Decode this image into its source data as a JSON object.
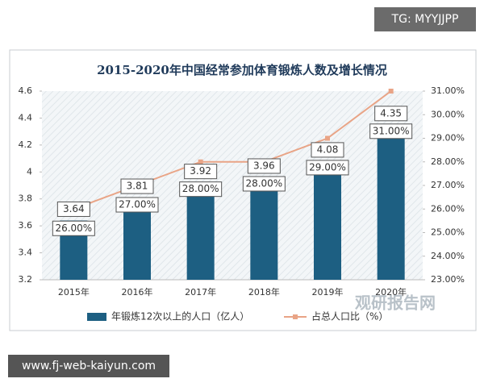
{
  "tag": "TG: MYYJJPP",
  "footer_url": "www.fj-web-kaiyun.com",
  "watermark": "观研报告网",
  "chart_data": {
    "type": "bar-line",
    "title": "2015-2020年中国经常参加体育锻炼人数及增长情况",
    "categories": [
      "2015年",
      "2016年",
      "2017年",
      "2018年",
      "2019年",
      "2020年"
    ],
    "series": [
      {
        "name": "年锻炼12次以上的人口（亿人）",
        "type": "bar",
        "color": "#1d5f82",
        "values": [
          3.64,
          3.81,
          3.92,
          3.96,
          4.08,
          4.35
        ]
      },
      {
        "name": "占总人口比（%）",
        "type": "line",
        "axis": "y2",
        "color": "#e9a486",
        "values": [
          26,
          27,
          28,
          28,
          29,
          31
        ],
        "value_labels": [
          "26.00%",
          "27.00%",
          "28.00%",
          "28.00%",
          "29.00%",
          "31.00%"
        ]
      }
    ],
    "ylim": [
      3.2,
      4.6
    ],
    "yticks": [
      3.2,
      3.4,
      3.6,
      3.8,
      4,
      4.2,
      4.4,
      4.6
    ],
    "y2lim": [
      23,
      31
    ],
    "y2ticks": [
      {
        "value": 23,
        "label": "23.00%"
      },
      {
        "value": 24,
        "label": "24.00%"
      },
      {
        "value": 25,
        "label": "25.00%"
      },
      {
        "value": 26,
        "label": "26.00%"
      },
      {
        "value": 27,
        "label": "27.00%"
      },
      {
        "value": 28,
        "label": "28.00%"
      },
      {
        "value": 29,
        "label": "29.00%"
      },
      {
        "value": 30,
        "label": "30.00%"
      },
      {
        "value": 31,
        "label": "31.00%"
      }
    ],
    "legend": "bottom"
  }
}
